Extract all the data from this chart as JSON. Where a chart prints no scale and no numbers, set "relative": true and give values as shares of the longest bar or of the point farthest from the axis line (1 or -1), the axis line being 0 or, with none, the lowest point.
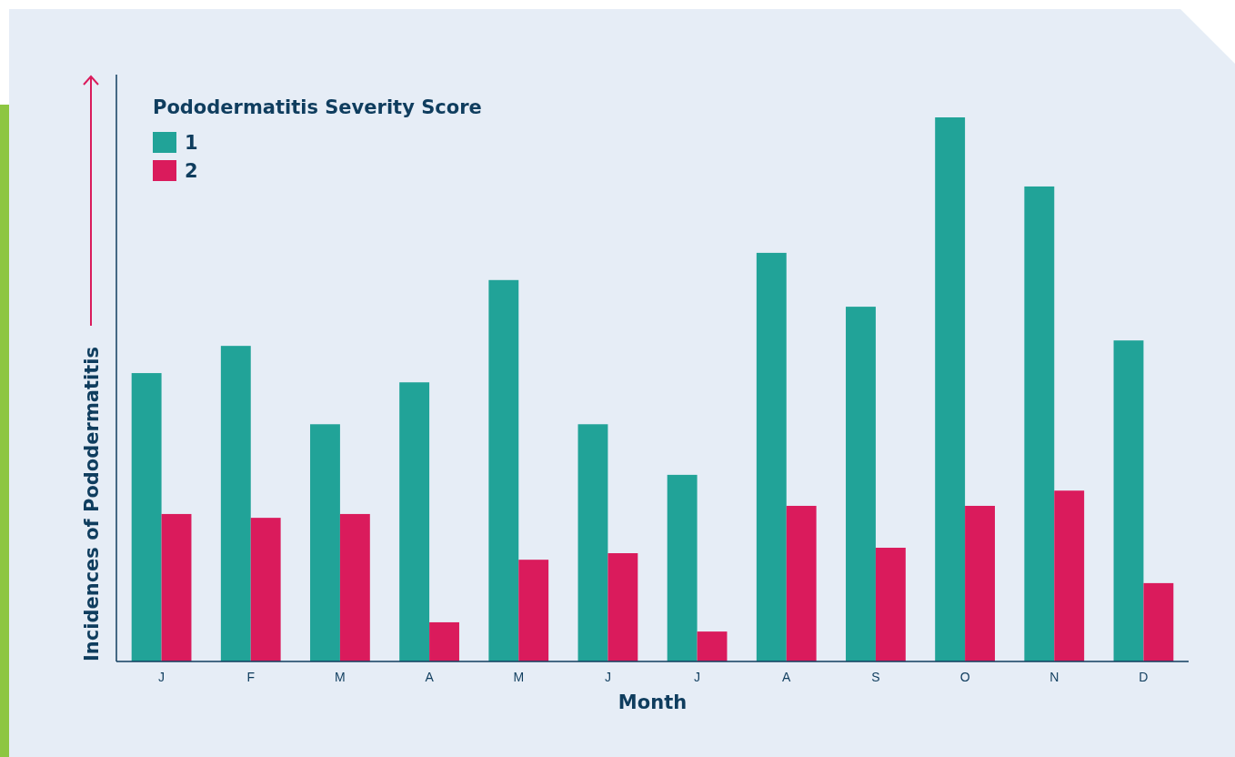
{
  "chart_data": {
    "type": "bar",
    "relative": true,
    "xlabel": "Month",
    "ylabel": "Incidences of Pododermatitis",
    "legend_title": "Pododermatitis Severity Score",
    "legend": "top left",
    "categories": [
      "J",
      "F",
      "M",
      "A",
      "M",
      "J",
      "J",
      "A",
      "S",
      "O",
      "N",
      "D"
    ],
    "series": [
      {
        "name": "1",
        "color": "#21a398",
        "values": [
          0.53,
          0.58,
          0.436,
          0.513,
          0.701,
          0.436,
          0.343,
          0.751,
          0.652,
          1,
          0.873,
          0.59
        ]
      },
      {
        "name": "2",
        "color": "#da1b5c",
        "values": [
          0.271,
          0.264,
          0.271,
          0.072,
          0.187,
          0.199,
          0.055,
          0.286,
          0.209,
          0.286,
          0.314,
          0.144
        ]
      }
    ]
  }
}
